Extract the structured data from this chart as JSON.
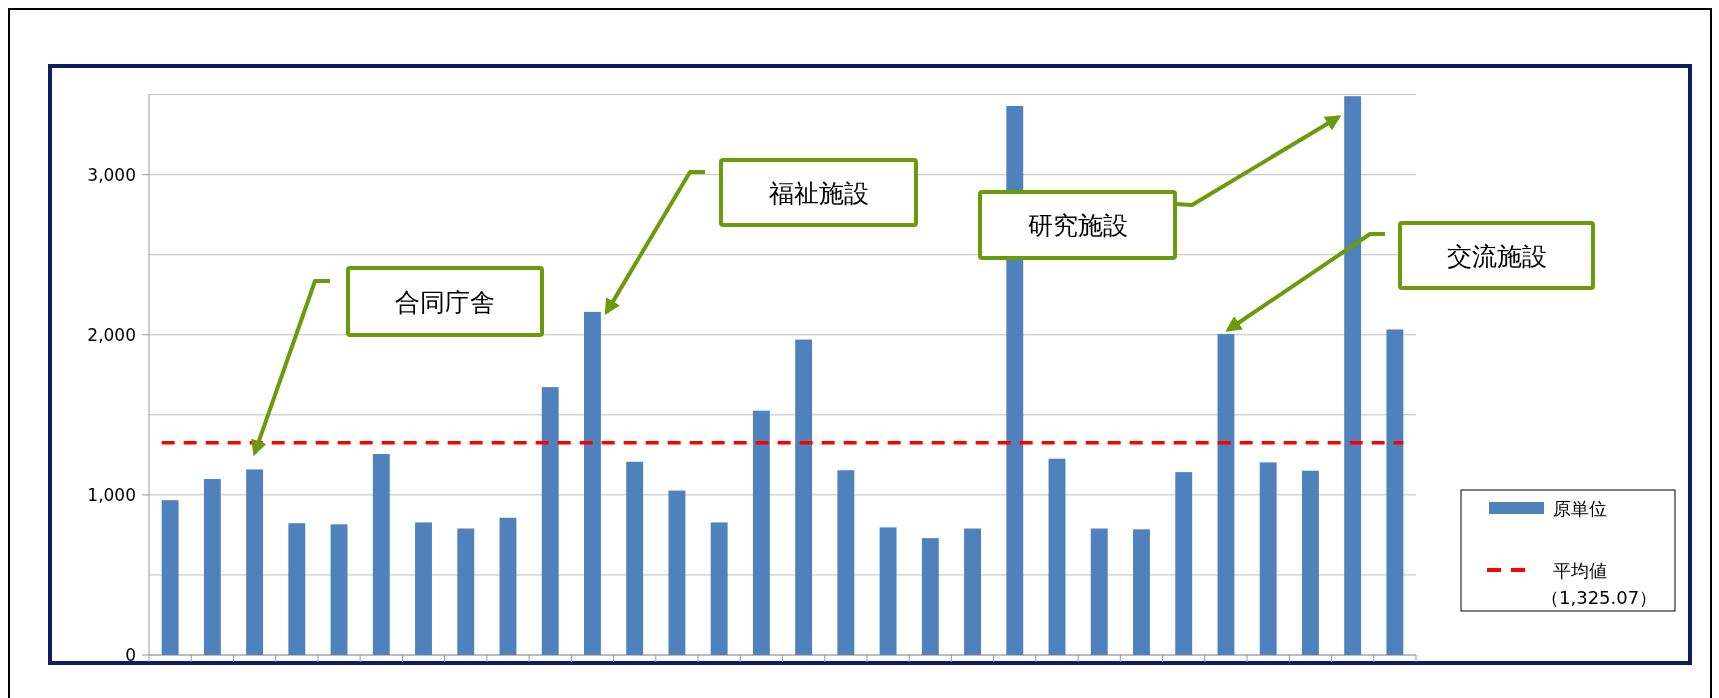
{
  "chart_data": {
    "type": "bar",
    "categories": [
      null,
      null,
      null,
      null,
      null,
      null,
      null,
      null,
      null,
      null,
      null,
      null,
      null,
      null,
      null,
      null,
      null,
      null,
      null,
      null,
      null,
      null,
      null,
      null,
      null,
      null,
      null,
      null,
      null,
      null
    ],
    "series": [
      {
        "name": "原単位",
        "color": "#4f81bd",
        "values": [
          967,
          1099,
          1159,
          823,
          816,
          1255,
          828,
          790,
          857,
          1673,
          2143,
          1207,
          1027,
          828,
          1526,
          1970,
          1154,
          797,
          730,
          790,
          3429,
          1226,
          790,
          785,
          1142,
          2005,
          1203,
          1151,
          3490,
          2033
        ]
      }
    ],
    "ylim": [
      0,
      3500
    ],
    "yticks": [
      0,
      {
        "value": 500,
        "label": null
      },
      {
        "value": 1000,
        "label": "1,000"
      },
      {
        "value": 1500,
        "label": null
      },
      {
        "value": 2000,
        "label": "2,000"
      },
      {
        "value": 2500,
        "label": null
      },
      {
        "value": 3000,
        "label": "3,000"
      },
      {
        "value": 3500,
        "label": null
      }
    ],
    "grid": "y",
    "legend": "bottom right",
    "ref_lines": [
      {
        "axis": "y",
        "value": 1325.07,
        "label": "平均値（1,325.07）",
        "color": "#ff0000",
        "line_style": "dashed"
      }
    ],
    "annotations": [
      "合同庁舎",
      "福祉施設",
      "研究施設",
      "交流施設"
    ]
  }
}
